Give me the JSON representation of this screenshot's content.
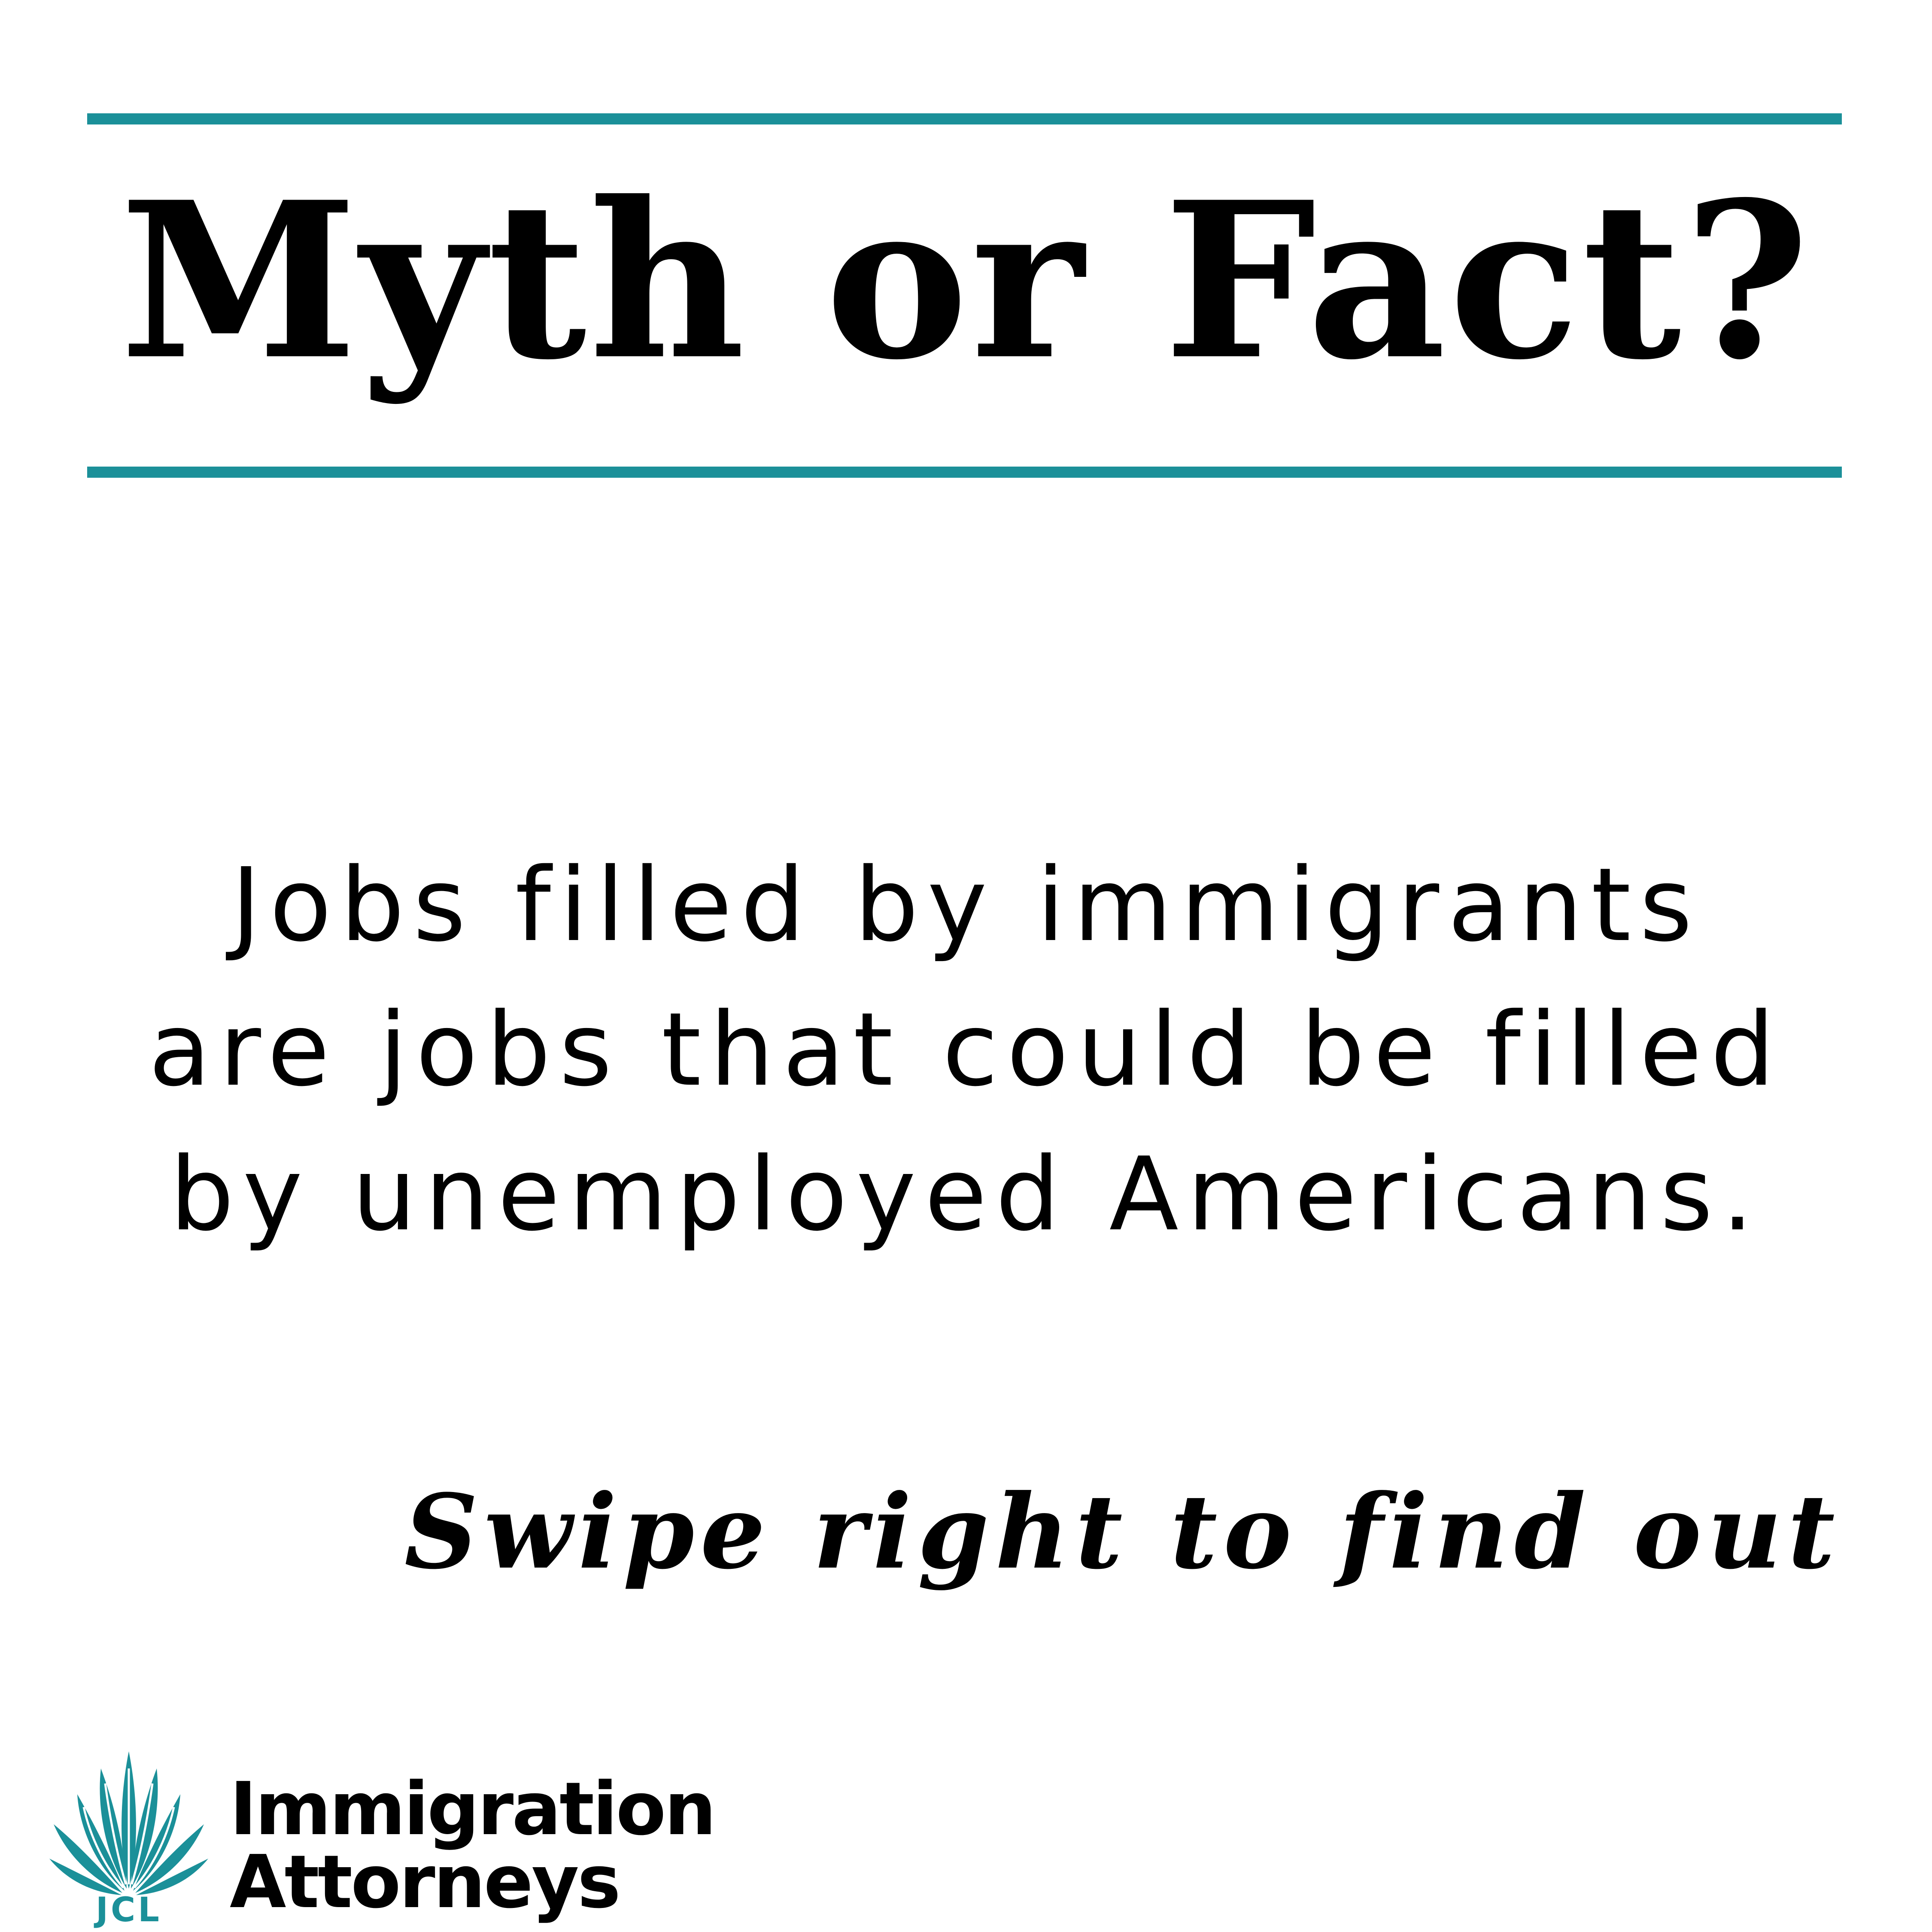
{
  "colors": {
    "accent": "#1b9099",
    "text": "#000000",
    "background": "#ffffff"
  },
  "headline": "Myth or Fact?",
  "statement": {
    "lines": [
      "Jobs filled by immigrants",
      "are jobs that could be filled",
      "by unemployed Americans."
    ]
  },
  "cta": "Swipe right to find out",
  "logo": {
    "icon": "agave-plant-icon",
    "initials": "JCL",
    "name_lines": [
      "Immigration",
      "Attorneys"
    ]
  }
}
